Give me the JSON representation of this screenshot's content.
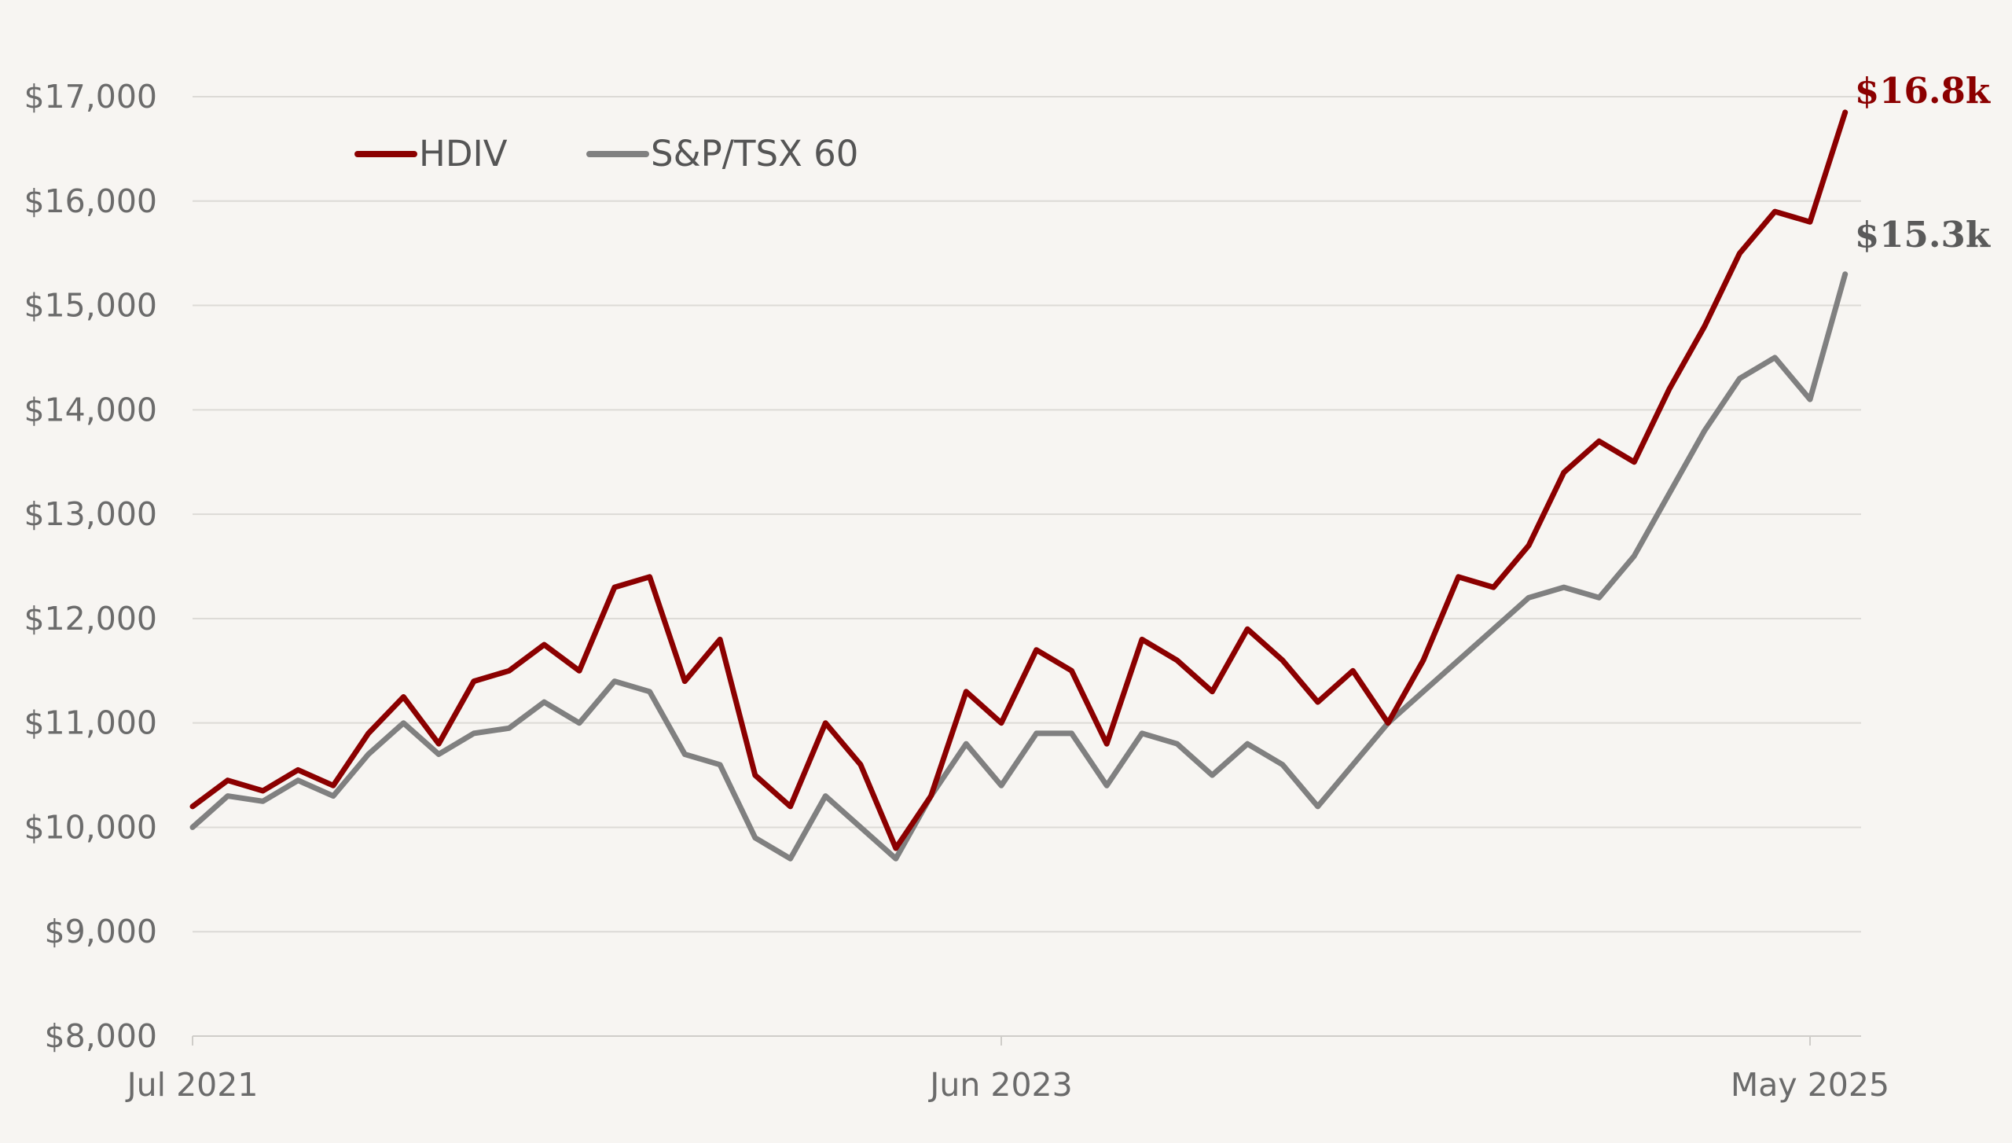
{
  "chart_data": {
    "type": "line",
    "title": "",
    "xlabel": "",
    "ylabel": "",
    "ylim": [
      8000,
      17000
    ],
    "xlim": [
      "2021-07",
      "2025-06"
    ],
    "y_ticks": [
      {
        "value": 17000,
        "label": "$17,000"
      },
      {
        "value": 16000,
        "label": "$16,000"
      },
      {
        "value": 15000,
        "label": "$15,000"
      },
      {
        "value": 14000,
        "label": "$14,000"
      },
      {
        "value": 13000,
        "label": "$13,000"
      },
      {
        "value": 12000,
        "label": "$12,000"
      },
      {
        "value": 11000,
        "label": "$11,000"
      },
      {
        "value": 10000,
        "label": "$10,000"
      },
      {
        "value": 9000,
        "label": "$9,000"
      },
      {
        "value": 8000,
        "label": "$8,000"
      }
    ],
    "x_ticks": [
      {
        "value": "2021-07",
        "label": "Jul 2021"
      },
      {
        "value": "2023-06",
        "label": "Jun 2023"
      },
      {
        "value": "2025-05",
        "label": "May 2025"
      }
    ],
    "grid": {
      "horizontal": true,
      "vertical": false
    },
    "legend": {
      "position": "top-left",
      "orientation": "horizontal"
    },
    "series": [
      {
        "name": "HDIV",
        "color": "#8b0000",
        "end_label": "$16.8k",
        "points": [
          [
            "2021-07",
            10200
          ],
          [
            "2021-08",
            10450
          ],
          [
            "2021-09",
            10350
          ],
          [
            "2021-10",
            10550
          ],
          [
            "2021-11",
            10400
          ],
          [
            "2021-12",
            10900
          ],
          [
            "2022-01",
            11250
          ],
          [
            "2022-02",
            10800
          ],
          [
            "2022-03",
            11400
          ],
          [
            "2022-04",
            11500
          ],
          [
            "2022-05",
            11750
          ],
          [
            "2022-06",
            11500
          ],
          [
            "2022-07",
            12300
          ],
          [
            "2022-08",
            12400
          ],
          [
            "2022-09",
            11400
          ],
          [
            "2022-10",
            11800
          ],
          [
            "2022-11",
            10500
          ],
          [
            "2022-12",
            10200
          ],
          [
            "2023-01",
            11000
          ],
          [
            "2023-02",
            10600
          ],
          [
            "2023-03",
            9800
          ],
          [
            "2023-04",
            10300
          ],
          [
            "2023-05",
            11300
          ],
          [
            "2023-06",
            11000
          ],
          [
            "2023-07",
            11700
          ],
          [
            "2023-08",
            11500
          ],
          [
            "2023-09",
            10800
          ],
          [
            "2023-10",
            11800
          ],
          [
            "2023-11",
            11600
          ],
          [
            "2023-12",
            11300
          ],
          [
            "2024-01",
            11900
          ],
          [
            "2024-02",
            11600
          ],
          [
            "2024-03",
            11200
          ],
          [
            "2024-04",
            11500
          ],
          [
            "2024-05",
            11000
          ],
          [
            "2024-06",
            11600
          ],
          [
            "2024-07",
            12400
          ],
          [
            "2024-08",
            12300
          ],
          [
            "2024-09",
            12700
          ],
          [
            "2024-10",
            13400
          ],
          [
            "2024-11",
            13700
          ],
          [
            "2024-12",
            13500
          ],
          [
            "2025-01",
            14200
          ],
          [
            "2025-02",
            14800
          ],
          [
            "2025-03",
            15500
          ],
          [
            "2025-04",
            15900
          ],
          [
            "2025-05",
            15800
          ],
          [
            "2025-06",
            16850
          ]
        ]
      },
      {
        "name": "S&P/TSX 60",
        "color": "#808080",
        "end_label": "$15.3k",
        "points": [
          [
            "2021-07",
            10000
          ],
          [
            "2021-08",
            10300
          ],
          [
            "2021-09",
            10250
          ],
          [
            "2021-10",
            10450
          ],
          [
            "2021-11",
            10300
          ],
          [
            "2021-12",
            10700
          ],
          [
            "2022-01",
            11000
          ],
          [
            "2022-02",
            10700
          ],
          [
            "2022-03",
            10900
          ],
          [
            "2022-04",
            10950
          ],
          [
            "2022-05",
            11200
          ],
          [
            "2022-06",
            11000
          ],
          [
            "2022-07",
            11400
          ],
          [
            "2022-08",
            11300
          ],
          [
            "2022-09",
            10700
          ],
          [
            "2022-10",
            10600
          ],
          [
            "2022-11",
            9900
          ],
          [
            "2022-12",
            9700
          ],
          [
            "2023-01",
            10300
          ],
          [
            "2023-02",
            10000
          ],
          [
            "2023-03",
            9700
          ],
          [
            "2023-04",
            10300
          ],
          [
            "2023-05",
            10800
          ],
          [
            "2023-06",
            10400
          ],
          [
            "2023-07",
            10900
          ],
          [
            "2023-08",
            10900
          ],
          [
            "2023-09",
            10400
          ],
          [
            "2023-10",
            10900
          ],
          [
            "2023-11",
            10800
          ],
          [
            "2023-12",
            10500
          ],
          [
            "2024-01",
            10800
          ],
          [
            "2024-02",
            10600
          ],
          [
            "2024-03",
            10200
          ],
          [
            "2024-04",
            10600
          ],
          [
            "2024-05",
            11000
          ],
          [
            "2024-06",
            11300
          ],
          [
            "2024-07",
            11600
          ],
          [
            "2024-08",
            11900
          ],
          [
            "2024-09",
            12200
          ],
          [
            "2024-10",
            12300
          ],
          [
            "2024-11",
            12200
          ],
          [
            "2024-12",
            12600
          ],
          [
            "2025-01",
            13200
          ],
          [
            "2025-02",
            13800
          ],
          [
            "2025-03",
            14300
          ],
          [
            "2025-04",
            14500
          ],
          [
            "2025-05",
            14100
          ],
          [
            "2025-06",
            15300
          ]
        ]
      }
    ]
  }
}
